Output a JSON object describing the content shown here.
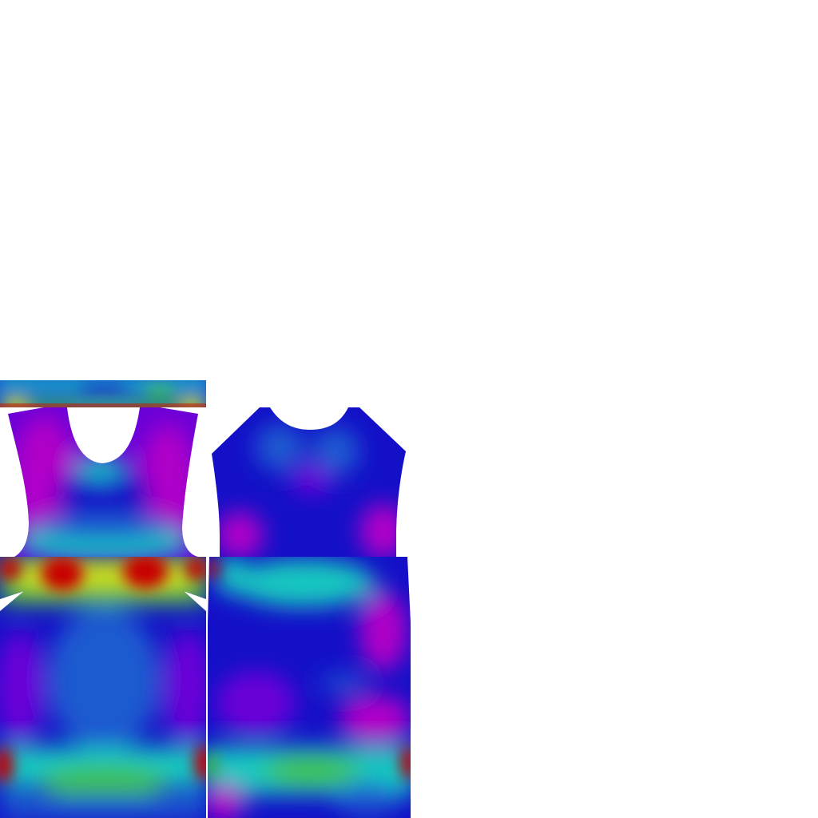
{
  "image": {
    "kind": "garment UV texture atlas rendered with a rainbow heat-map colour scale",
    "background": "#ffffff",
    "palette": {
      "magenta": "#b000c8",
      "violet": "#6a00d8",
      "blue": "#1410c8",
      "mid_blue": "#1a5ad0",
      "cyan": "#18c8c0",
      "green": "#40c040",
      "yellow": "#d8e010",
      "red": "#c80000"
    },
    "pieces": [
      "waistband-strip",
      "front-bodice",
      "back-bodice",
      "front-skirt",
      "back-skirt"
    ]
  }
}
